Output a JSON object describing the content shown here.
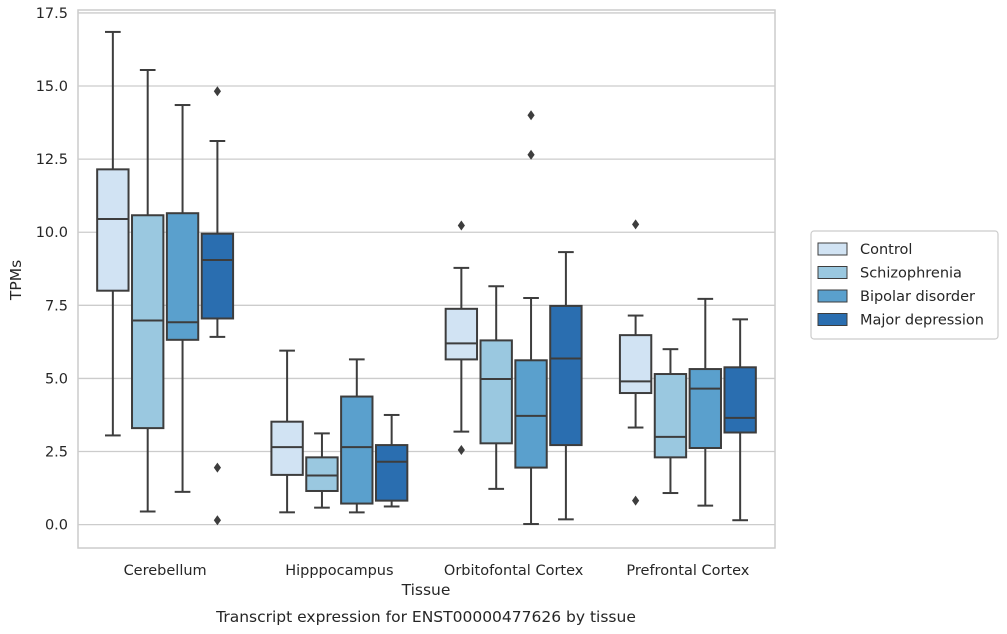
{
  "chart_data": {
    "type": "box",
    "title": "",
    "caption": "Transcript expression for ENST00000477626 by tissue",
    "xlabel": "Tissue",
    "ylabel": "TPMs",
    "ylim": [
      -0.8,
      17.6
    ],
    "yticks": [
      0.0,
      2.5,
      5.0,
      7.5,
      10.0,
      12.5,
      15.0,
      17.5
    ],
    "ytick_labels": [
      "0.0",
      "2.5",
      "5.0",
      "7.5",
      "10.0",
      "12.5",
      "15.0",
      "17.5"
    ],
    "grid": "horizontal",
    "legend_position": "right",
    "categories": [
      "Cerebellum",
      "Hipppocampus",
      "Orbitofontal Cortex",
      "Prefrontal Cortex"
    ],
    "series": [
      {
        "name": "Control",
        "color": "#d1e3f3",
        "boxes": [
          {
            "whislo": 3.05,
            "q1": 8.0,
            "med": 10.45,
            "q3": 12.15,
            "whishi": 16.85,
            "fliers": []
          },
          {
            "whislo": 0.42,
            "q1": 1.7,
            "med": 2.65,
            "q3": 3.52,
            "whishi": 5.95,
            "fliers": []
          },
          {
            "whislo": 3.18,
            "q1": 5.65,
            "med": 6.2,
            "q3": 7.38,
            "whishi": 8.78,
            "fliers": [
              10.23,
              2.55
            ]
          },
          {
            "whislo": 3.32,
            "q1": 4.5,
            "med": 4.9,
            "q3": 6.48,
            "whishi": 7.15,
            "fliers": [
              10.27,
              0.82
            ]
          }
        ]
      },
      {
        "name": "Schizophrenia",
        "color": "#9ac8e0",
        "boxes": [
          {
            "whislo": 0.45,
            "q1": 3.3,
            "med": 6.98,
            "q3": 10.58,
            "whishi": 15.55,
            "fliers": []
          },
          {
            "whislo": 0.58,
            "q1": 1.15,
            "med": 1.68,
            "q3": 2.3,
            "whishi": 3.12,
            "fliers": []
          },
          {
            "whislo": 1.22,
            "q1": 2.78,
            "med": 4.98,
            "q3": 6.3,
            "whishi": 8.15,
            "fliers": []
          },
          {
            "whislo": 1.08,
            "q1": 2.3,
            "med": 3.0,
            "q3": 5.15,
            "whishi": 6.0,
            "fliers": []
          }
        ]
      },
      {
        "name": "Bipolar disorder",
        "color": "#5aa0cd",
        "boxes": [
          {
            "whislo": 1.12,
            "q1": 6.32,
            "med": 6.92,
            "q3": 10.65,
            "whishi": 14.35,
            "fliers": []
          },
          {
            "whislo": 0.42,
            "q1": 0.72,
            "med": 2.65,
            "q3": 4.38,
            "whishi": 5.65,
            "fliers": []
          },
          {
            "whislo": 0.02,
            "q1": 1.95,
            "med": 3.72,
            "q3": 5.62,
            "whishi": 7.75,
            "fliers": [
              14.0,
              12.65
            ]
          },
          {
            "whislo": 0.65,
            "q1": 2.62,
            "med": 4.65,
            "q3": 5.32,
            "whishi": 7.72,
            "fliers": []
          }
        ]
      },
      {
        "name": "Major depression",
        "color": "#2a6eb0",
        "boxes": [
          {
            "whislo": 6.42,
            "q1": 7.05,
            "med": 9.05,
            "q3": 9.95,
            "whishi": 13.12,
            "fliers": [
              14.82,
              1.95,
              0.15
            ]
          },
          {
            "whislo": 0.62,
            "q1": 0.82,
            "med": 2.15,
            "q3": 2.72,
            "whishi": 3.75,
            "fliers": []
          },
          {
            "whislo": 0.18,
            "q1": 2.72,
            "med": 5.68,
            "q3": 7.48,
            "whishi": 9.32,
            "fliers": []
          },
          {
            "whislo": 0.15,
            "q1": 3.15,
            "med": 3.65,
            "q3": 5.38,
            "whishi": 7.02,
            "fliers": []
          }
        ]
      }
    ]
  }
}
